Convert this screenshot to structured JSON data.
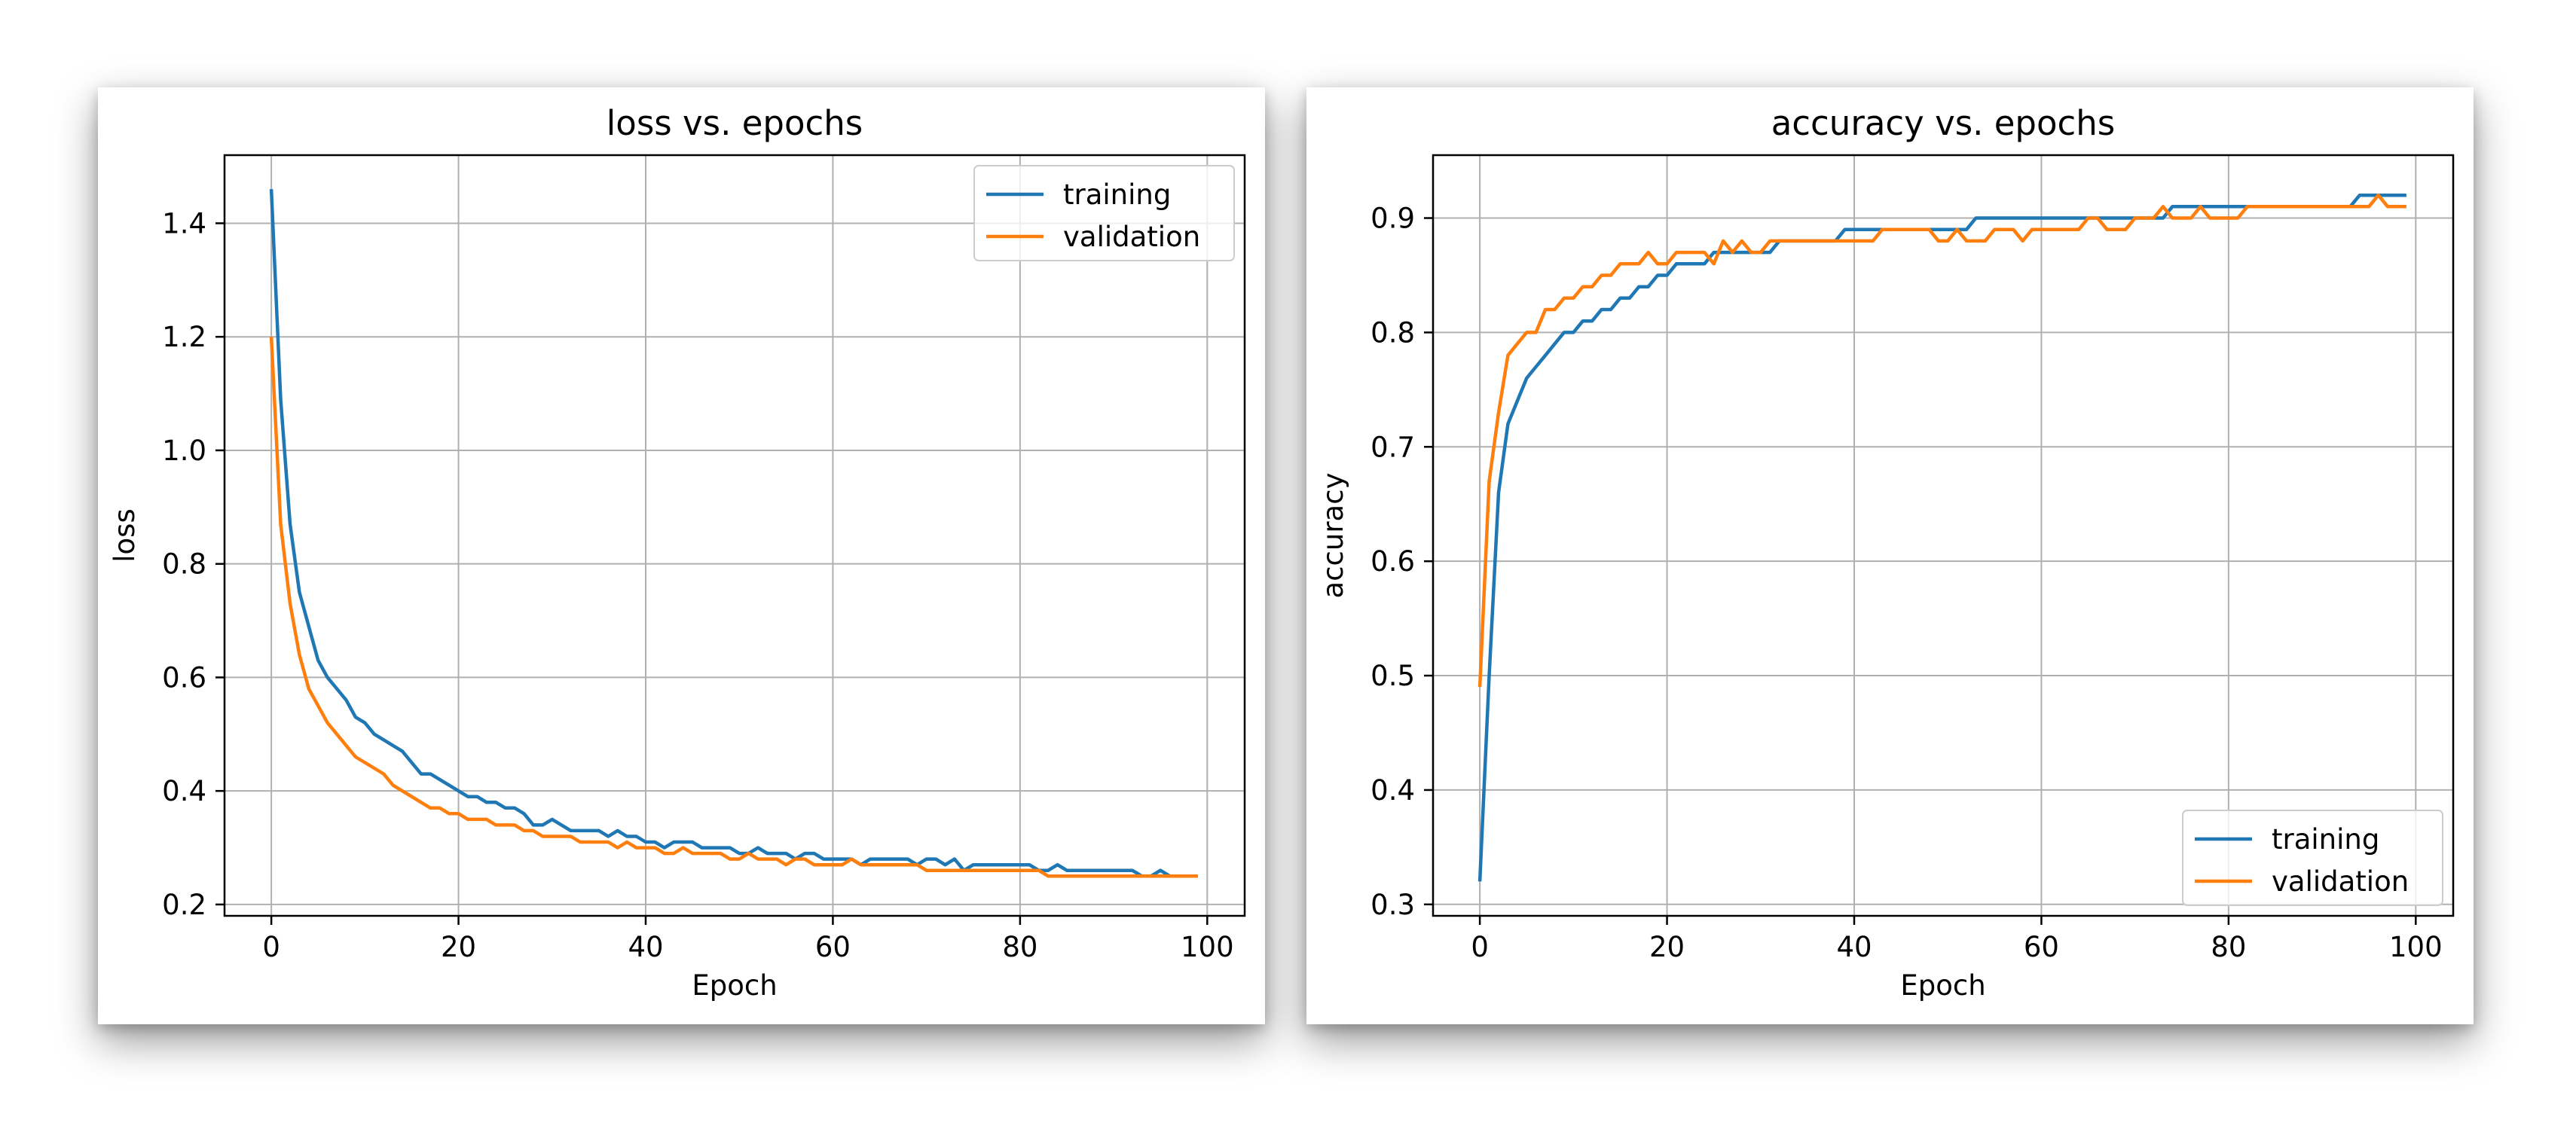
{
  "chart_data": [
    {
      "type": "line",
      "title": "loss vs. epochs",
      "xlabel": "Epoch",
      "ylabel": "loss",
      "xlim": [
        -5,
        104
      ],
      "ylim": [
        0.18,
        1.52
      ],
      "xticks": [
        0,
        20,
        40,
        60,
        80,
        100
      ],
      "yticks": [
        0.2,
        0.4,
        0.6,
        0.8,
        1.0,
        1.2,
        1.4
      ],
      "grid": true,
      "legend_position": "top-right",
      "series": [
        {
          "name": "training",
          "color": "#1f77b4",
          "x": [
            0,
            1,
            2,
            3,
            4,
            5,
            6,
            7,
            8,
            9,
            10,
            11,
            12,
            13,
            14,
            15,
            16,
            17,
            18,
            19,
            20,
            21,
            22,
            23,
            24,
            25,
            26,
            27,
            28,
            29,
            30,
            31,
            32,
            33,
            34,
            35,
            36,
            37,
            38,
            39,
            40,
            41,
            42,
            43,
            44,
            45,
            46,
            47,
            48,
            49,
            50,
            51,
            52,
            53,
            54,
            55,
            56,
            57,
            58,
            59,
            60,
            61,
            62,
            63,
            64,
            65,
            66,
            67,
            68,
            69,
            70,
            71,
            72,
            73,
            74,
            75,
            76,
            77,
            78,
            79,
            80,
            81,
            82,
            83,
            84,
            85,
            86,
            87,
            88,
            89,
            90,
            91,
            92,
            93,
            94,
            95,
            96,
            97,
            98,
            99
          ],
          "values": [
            1.46,
            1.09,
            0.87,
            0.75,
            0.69,
            0.63,
            0.6,
            0.58,
            0.56,
            0.53,
            0.52,
            0.5,
            0.49,
            0.48,
            0.47,
            0.45,
            0.43,
            0.43,
            0.42,
            0.41,
            0.4,
            0.39,
            0.39,
            0.38,
            0.38,
            0.37,
            0.37,
            0.36,
            0.34,
            0.34,
            0.35,
            0.34,
            0.33,
            0.33,
            0.33,
            0.33,
            0.32,
            0.33,
            0.32,
            0.32,
            0.31,
            0.31,
            0.3,
            0.31,
            0.31,
            0.31,
            0.3,
            0.3,
            0.3,
            0.3,
            0.29,
            0.29,
            0.3,
            0.29,
            0.29,
            0.29,
            0.28,
            0.29,
            0.29,
            0.28,
            0.28,
            0.28,
            0.28,
            0.27,
            0.28,
            0.28,
            0.28,
            0.28,
            0.28,
            0.27,
            0.28,
            0.28,
            0.27,
            0.28,
            0.26,
            0.27,
            0.27,
            0.27,
            0.27,
            0.27,
            0.27,
            0.27,
            0.26,
            0.26,
            0.27,
            0.26,
            0.26,
            0.26,
            0.26,
            0.26,
            0.26,
            0.26,
            0.26,
            0.25,
            0.25,
            0.26,
            0.25,
            0.25,
            0.25,
            0.25
          ]
        },
        {
          "name": "validation",
          "color": "#ff7f0e",
          "x": [
            0,
            1,
            2,
            3,
            4,
            5,
            6,
            7,
            8,
            9,
            10,
            11,
            12,
            13,
            14,
            15,
            16,
            17,
            18,
            19,
            20,
            21,
            22,
            23,
            24,
            25,
            26,
            27,
            28,
            29,
            30,
            31,
            32,
            33,
            34,
            35,
            36,
            37,
            38,
            39,
            40,
            41,
            42,
            43,
            44,
            45,
            46,
            47,
            48,
            49,
            50,
            51,
            52,
            53,
            54,
            55,
            56,
            57,
            58,
            59,
            60,
            61,
            62,
            63,
            64,
            65,
            66,
            67,
            68,
            69,
            70,
            71,
            72,
            73,
            74,
            75,
            76,
            77,
            78,
            79,
            80,
            81,
            82,
            83,
            84,
            85,
            86,
            87,
            88,
            89,
            90,
            91,
            92,
            93,
            94,
            95,
            96,
            97,
            98,
            99
          ],
          "values": [
            1.2,
            0.87,
            0.73,
            0.64,
            0.58,
            0.55,
            0.52,
            0.5,
            0.48,
            0.46,
            0.45,
            0.44,
            0.43,
            0.41,
            0.4,
            0.39,
            0.38,
            0.37,
            0.37,
            0.36,
            0.36,
            0.35,
            0.35,
            0.35,
            0.34,
            0.34,
            0.34,
            0.33,
            0.33,
            0.32,
            0.32,
            0.32,
            0.32,
            0.31,
            0.31,
            0.31,
            0.31,
            0.3,
            0.31,
            0.3,
            0.3,
            0.3,
            0.29,
            0.29,
            0.3,
            0.29,
            0.29,
            0.29,
            0.29,
            0.28,
            0.28,
            0.29,
            0.28,
            0.28,
            0.28,
            0.27,
            0.28,
            0.28,
            0.27,
            0.27,
            0.27,
            0.27,
            0.28,
            0.27,
            0.27,
            0.27,
            0.27,
            0.27,
            0.27,
            0.27,
            0.26,
            0.26,
            0.26,
            0.26,
            0.26,
            0.26,
            0.26,
            0.26,
            0.26,
            0.26,
            0.26,
            0.26,
            0.26,
            0.25,
            0.25,
            0.25,
            0.25,
            0.25,
            0.25,
            0.25,
            0.25,
            0.25,
            0.25,
            0.25,
            0.25,
            0.25,
            0.25,
            0.25,
            0.25,
            0.25
          ]
        }
      ]
    },
    {
      "type": "line",
      "title": "accuracy vs. epochs",
      "xlabel": "Epoch",
      "ylabel": "accuracy",
      "xlim": [
        -5,
        104
      ],
      "ylim": [
        0.29,
        0.955
      ],
      "xticks": [
        0,
        20,
        40,
        60,
        80,
        100
      ],
      "yticks": [
        0.3,
        0.4,
        0.5,
        0.6,
        0.7,
        0.8,
        0.9
      ],
      "grid": true,
      "legend_position": "bottom-right",
      "series": [
        {
          "name": "training",
          "color": "#1f77b4",
          "x": [
            0,
            1,
            2,
            3,
            4,
            5,
            6,
            7,
            8,
            9,
            10,
            11,
            12,
            13,
            14,
            15,
            16,
            17,
            18,
            19,
            20,
            21,
            22,
            23,
            24,
            25,
            26,
            27,
            28,
            29,
            30,
            31,
            32,
            33,
            34,
            35,
            36,
            37,
            38,
            39,
            40,
            41,
            42,
            43,
            44,
            45,
            46,
            47,
            48,
            49,
            50,
            51,
            52,
            53,
            54,
            55,
            56,
            57,
            58,
            59,
            60,
            61,
            62,
            63,
            64,
            65,
            66,
            67,
            68,
            69,
            70,
            71,
            72,
            73,
            74,
            75,
            76,
            77,
            78,
            79,
            80,
            81,
            82,
            83,
            84,
            85,
            86,
            87,
            88,
            89,
            90,
            91,
            92,
            93,
            94,
            95,
            96,
            97,
            98,
            99
          ],
          "values": [
            0.32,
            0.5,
            0.66,
            0.72,
            0.74,
            0.76,
            0.77,
            0.78,
            0.79,
            0.8,
            0.8,
            0.81,
            0.81,
            0.82,
            0.82,
            0.83,
            0.83,
            0.84,
            0.84,
            0.85,
            0.85,
            0.86,
            0.86,
            0.86,
            0.86,
            0.87,
            0.87,
            0.87,
            0.87,
            0.87,
            0.87,
            0.87,
            0.88,
            0.88,
            0.88,
            0.88,
            0.88,
            0.88,
            0.88,
            0.89,
            0.89,
            0.89,
            0.89,
            0.89,
            0.89,
            0.89,
            0.89,
            0.89,
            0.89,
            0.89,
            0.89,
            0.89,
            0.89,
            0.9,
            0.9,
            0.9,
            0.9,
            0.9,
            0.9,
            0.9,
            0.9,
            0.9,
            0.9,
            0.9,
            0.9,
            0.9,
            0.9,
            0.9,
            0.9,
            0.9,
            0.9,
            0.9,
            0.9,
            0.9,
            0.91,
            0.91,
            0.91,
            0.91,
            0.91,
            0.91,
            0.91,
            0.91,
            0.91,
            0.91,
            0.91,
            0.91,
            0.91,
            0.91,
            0.91,
            0.91,
            0.91,
            0.91,
            0.91,
            0.91,
            0.92,
            0.92,
            0.92,
            0.92,
            0.92,
            0.92
          ]
        },
        {
          "name": "validation",
          "color": "#ff7f0e",
          "x": [
            0,
            1,
            2,
            3,
            4,
            5,
            6,
            7,
            8,
            9,
            10,
            11,
            12,
            13,
            14,
            15,
            16,
            17,
            18,
            19,
            20,
            21,
            22,
            23,
            24,
            25,
            26,
            27,
            28,
            29,
            30,
            31,
            32,
            33,
            34,
            35,
            36,
            37,
            38,
            39,
            40,
            41,
            42,
            43,
            44,
            45,
            46,
            47,
            48,
            49,
            50,
            51,
            52,
            53,
            54,
            55,
            56,
            57,
            58,
            59,
            60,
            61,
            62,
            63,
            64,
            65,
            66,
            67,
            68,
            69,
            70,
            71,
            72,
            73,
            74,
            75,
            76,
            77,
            78,
            79,
            80,
            81,
            82,
            83,
            84,
            85,
            86,
            87,
            88,
            89,
            90,
            91,
            92,
            93,
            94,
            95,
            96,
            97,
            98,
            99
          ],
          "values": [
            0.49,
            0.67,
            0.73,
            0.78,
            0.79,
            0.8,
            0.8,
            0.82,
            0.82,
            0.83,
            0.83,
            0.84,
            0.84,
            0.85,
            0.85,
            0.86,
            0.86,
            0.86,
            0.87,
            0.86,
            0.86,
            0.87,
            0.87,
            0.87,
            0.87,
            0.86,
            0.88,
            0.87,
            0.88,
            0.87,
            0.87,
            0.88,
            0.88,
            0.88,
            0.88,
            0.88,
            0.88,
            0.88,
            0.88,
            0.88,
            0.88,
            0.88,
            0.88,
            0.89,
            0.89,
            0.89,
            0.89,
            0.89,
            0.89,
            0.88,
            0.88,
            0.89,
            0.88,
            0.88,
            0.88,
            0.89,
            0.89,
            0.89,
            0.88,
            0.89,
            0.89,
            0.89,
            0.89,
            0.89,
            0.89,
            0.9,
            0.9,
            0.89,
            0.89,
            0.89,
            0.9,
            0.9,
            0.9,
            0.91,
            0.9,
            0.9,
            0.9,
            0.91,
            0.9,
            0.9,
            0.9,
            0.9,
            0.91,
            0.91,
            0.91,
            0.91,
            0.91,
            0.91,
            0.91,
            0.91,
            0.91,
            0.91,
            0.91,
            0.91,
            0.91,
            0.91,
            0.92,
            0.91,
            0.91,
            0.91
          ]
        }
      ]
    }
  ]
}
